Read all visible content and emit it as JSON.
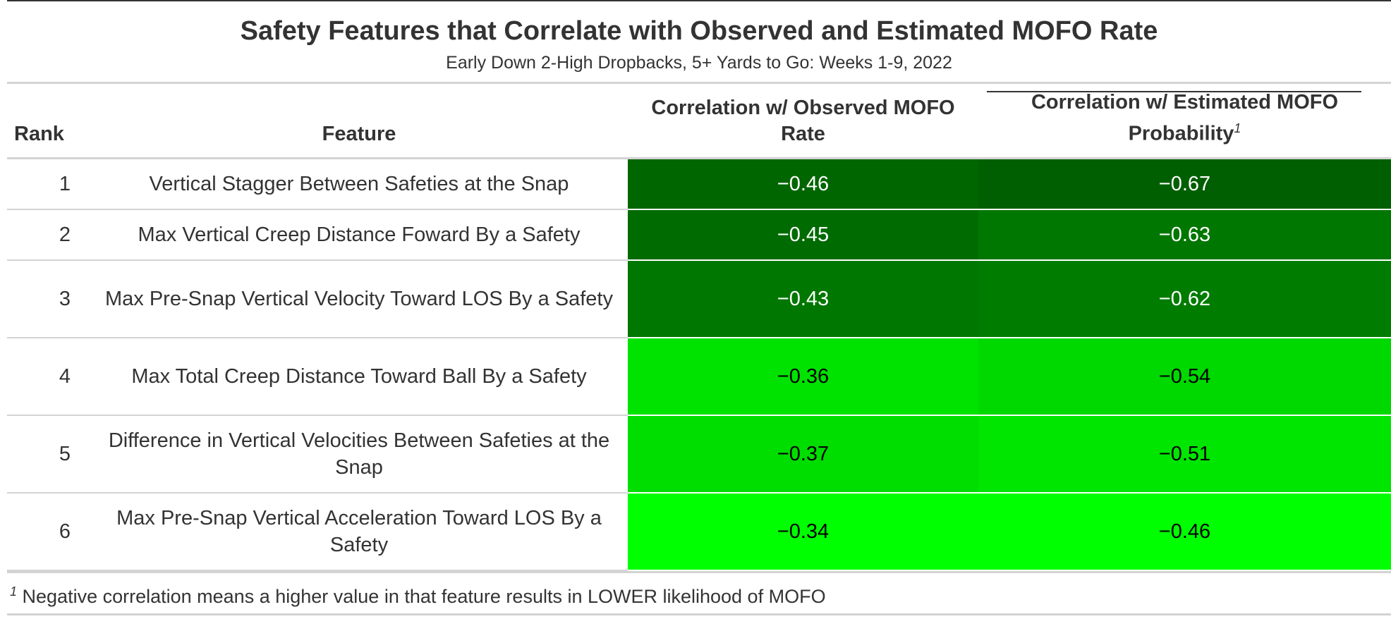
{
  "title": "Safety Features that Correlate with Observed and Estimated MOFO Rate",
  "subtitle": "Early Down 2-High Dropbacks, 5+ Yards to Go: Weeks 1-9, 2022",
  "columns": {
    "rank": "Rank",
    "feature": "Feature",
    "observed": "Correlation w/ Observed MOFO Rate",
    "estimated": "Correlation w/ Estimated MOFO Probability",
    "estimated_footnote_mark": "1"
  },
  "rows": [
    {
      "rank": "1",
      "feature": "Vertical Stagger Between Safeties at the Snap",
      "observed": "−0.46",
      "estimated": "−0.67",
      "observed_bg": "#006600",
      "observed_fg": "#ffffff",
      "estimated_bg": "#005f00",
      "estimated_fg": "#ffffff"
    },
    {
      "rank": "2",
      "feature": "Max Vertical Creep Distance Foward By a Safety",
      "observed": "−0.45",
      "estimated": "−0.63",
      "observed_bg": "#006b00",
      "observed_fg": "#ffffff",
      "estimated_bg": "#007700",
      "estimated_fg": "#ffffff"
    },
    {
      "rank": "3",
      "feature": "Max Pre-Snap Vertical Velocity Toward LOS By a Safety",
      "observed": "−0.43",
      "estimated": "−0.62",
      "observed_bg": "#007700",
      "observed_fg": "#ffffff",
      "estimated_bg": "#007c00",
      "estimated_fg": "#ffffff"
    },
    {
      "rank": "4",
      "feature": "Max Total Creep Distance Toward Ball By a Safety",
      "observed": "−0.36",
      "estimated": "−0.54",
      "observed_bg": "#00e300",
      "observed_fg": "#000000",
      "estimated_bg": "#00d900",
      "estimated_fg": "#000000"
    },
    {
      "rank": "5",
      "feature": "Difference in Vertical Velocities Between Safeties at the Snap",
      "observed": "−0.37",
      "estimated": "−0.51",
      "observed_bg": "#00de00",
      "observed_fg": "#000000",
      "estimated_bg": "#00e600",
      "estimated_fg": "#000000"
    },
    {
      "rank": "6",
      "feature": "Max Pre-Snap Vertical Acceleration Toward LOS By a Safety",
      "observed": "−0.34",
      "estimated": "−0.46",
      "observed_bg": "#00ff00",
      "observed_fg": "#000000",
      "estimated_bg": "#00ff00",
      "estimated_fg": "#000000"
    }
  ],
  "footnote": {
    "mark": "1",
    "text": "Negative correlation means a higher value in that feature results in LOWER likelihood of MOFO"
  }
}
